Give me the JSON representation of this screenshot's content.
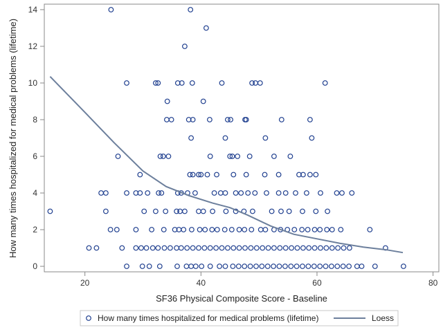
{
  "chart_data": {
    "type": "scatter",
    "xlabel": "SF36 Physical Composite Score - Baseline",
    "ylabel": "How many times hospitalized for medical problems (lifetime)",
    "xlim": [
      13,
      81
    ],
    "ylim": [
      -0.3,
      14.3
    ],
    "xticks": [
      20,
      40,
      60,
      80
    ],
    "yticks": [
      0,
      2,
      4,
      6,
      8,
      10,
      12,
      14
    ],
    "grid": false,
    "legend_position": "bottom",
    "colors": {
      "points": "#1f3f8f",
      "loess": "#6c7f9c",
      "frame": "#888888"
    },
    "series": [
      {
        "name": "How many times hospitalized for medical problems (lifetime)",
        "kind": "scatter",
        "marker": "open-circle",
        "points": [
          [
            24.5,
            14
          ],
          [
            38.2,
            14
          ],
          [
            37.2,
            12
          ],
          [
            40.9,
            13
          ],
          [
            27.2,
            10
          ],
          [
            32.2,
            10
          ],
          [
            32.6,
            10
          ],
          [
            36.0,
            10
          ],
          [
            36.7,
            10
          ],
          [
            38.5,
            10
          ],
          [
            43.6,
            10
          ],
          [
            48.8,
            10
          ],
          [
            49.4,
            10
          ],
          [
            50.2,
            10
          ],
          [
            61.4,
            10
          ],
          [
            34.2,
            9
          ],
          [
            40.4,
            9
          ],
          [
            34.1,
            8
          ],
          [
            34.9,
            8
          ],
          [
            37.9,
            8
          ],
          [
            38.6,
            8
          ],
          [
            41.5,
            8
          ],
          [
            44.6,
            8
          ],
          [
            45.1,
            8
          ],
          [
            47.6,
            8
          ],
          [
            47.8,
            8
          ],
          [
            53.9,
            8
          ],
          [
            58.8,
            8
          ],
          [
            38.3,
            7
          ],
          [
            44.2,
            7
          ],
          [
            51.1,
            7
          ],
          [
            59.1,
            7
          ],
          [
            25.7,
            6
          ],
          [
            33.0,
            6
          ],
          [
            33.5,
            6
          ],
          [
            34.4,
            6
          ],
          [
            41.6,
            6
          ],
          [
            45.0,
            6
          ],
          [
            45.4,
            6
          ],
          [
            46.3,
            6
          ],
          [
            48.4,
            6
          ],
          [
            52.6,
            6
          ],
          [
            55.4,
            6
          ],
          [
            29.5,
            5
          ],
          [
            38.1,
            5
          ],
          [
            38.6,
            5
          ],
          [
            39.6,
            5
          ],
          [
            40.0,
            5
          ],
          [
            41.1,
            5
          ],
          [
            42.7,
            5
          ],
          [
            45.6,
            5
          ],
          [
            47.8,
            5
          ],
          [
            51.0,
            5
          ],
          [
            53.4,
            5
          ],
          [
            56.9,
            5
          ],
          [
            57.6,
            5
          ],
          [
            58.8,
            5
          ],
          [
            59.8,
            5
          ],
          [
            22.8,
            4
          ],
          [
            23.6,
            4
          ],
          [
            27.2,
            4
          ],
          [
            28.8,
            4
          ],
          [
            29.5,
            4
          ],
          [
            30.8,
            4
          ],
          [
            32.7,
            4
          ],
          [
            33.2,
            4
          ],
          [
            36.0,
            4
          ],
          [
            36.6,
            4
          ],
          [
            37.7,
            4
          ],
          [
            39.0,
            4
          ],
          [
            42.3,
            4
          ],
          [
            43.4,
            4
          ],
          [
            44.2,
            4
          ],
          [
            46.0,
            4
          ],
          [
            46.9,
            4
          ],
          [
            48.1,
            4
          ],
          [
            49.3,
            4
          ],
          [
            51.3,
            4
          ],
          [
            53.4,
            4
          ],
          [
            54.6,
            4
          ],
          [
            56.3,
            4
          ],
          [
            58.2,
            4
          ],
          [
            60.6,
            4
          ],
          [
            63.4,
            4
          ],
          [
            64.3,
            4
          ],
          [
            66.0,
            4
          ],
          [
            14.0,
            3
          ],
          [
            23.6,
            3
          ],
          [
            30.2,
            3
          ],
          [
            32.2,
            3
          ],
          [
            33.9,
            3
          ],
          [
            35.8,
            3
          ],
          [
            36.4,
            3
          ],
          [
            37.2,
            3
          ],
          [
            39.6,
            3
          ],
          [
            40.4,
            3
          ],
          [
            42.0,
            3
          ],
          [
            44.3,
            3
          ],
          [
            46.0,
            3
          ],
          [
            47.4,
            3
          ],
          [
            48.9,
            3
          ],
          [
            52.2,
            3
          ],
          [
            53.8,
            3
          ],
          [
            55.2,
            3
          ],
          [
            57.5,
            3
          ],
          [
            59.8,
            3
          ],
          [
            61.8,
            3
          ],
          [
            24.4,
            2
          ],
          [
            25.5,
            2
          ],
          [
            28.8,
            2
          ],
          [
            31.5,
            2
          ],
          [
            33.6,
            2
          ],
          [
            35.5,
            2
          ],
          [
            36.2,
            2
          ],
          [
            37.0,
            2
          ],
          [
            38.4,
            2
          ],
          [
            39.8,
            2
          ],
          [
            40.7,
            2
          ],
          [
            41.9,
            2
          ],
          [
            42.8,
            2
          ],
          [
            44.1,
            2
          ],
          [
            45.3,
            2
          ],
          [
            46.6,
            2
          ],
          [
            47.5,
            2
          ],
          [
            48.7,
            2
          ],
          [
            50.3,
            2
          ],
          [
            51.1,
            2
          ],
          [
            52.6,
            2
          ],
          [
            53.7,
            2
          ],
          [
            54.9,
            2
          ],
          [
            56.1,
            2
          ],
          [
            57.4,
            2
          ],
          [
            58.4,
            2
          ],
          [
            59.6,
            2
          ],
          [
            60.5,
            2
          ],
          [
            61.7,
            2
          ],
          [
            62.6,
            2
          ],
          [
            64.1,
            2
          ],
          [
            69.1,
            2
          ],
          [
            20.7,
            1
          ],
          [
            22.0,
            1
          ],
          [
            26.4,
            1
          ],
          [
            28.8,
            1
          ],
          [
            29.7,
            1
          ],
          [
            30.6,
            1
          ],
          [
            31.7,
            1
          ],
          [
            32.6,
            1
          ],
          [
            33.7,
            1
          ],
          [
            34.7,
            1
          ],
          [
            35.8,
            1
          ],
          [
            36.6,
            1
          ],
          [
            37.6,
            1
          ],
          [
            38.6,
            1
          ],
          [
            39.6,
            1
          ],
          [
            40.6,
            1
          ],
          [
            41.6,
            1
          ],
          [
            42.6,
            1
          ],
          [
            43.6,
            1
          ],
          [
            44.6,
            1
          ],
          [
            45.6,
            1
          ],
          [
            46.6,
            1
          ],
          [
            47.6,
            1
          ],
          [
            48.6,
            1
          ],
          [
            49.6,
            1
          ],
          [
            50.6,
            1
          ],
          [
            51.6,
            1
          ],
          [
            52.6,
            1
          ],
          [
            53.6,
            1
          ],
          [
            54.6,
            1
          ],
          [
            55.6,
            1
          ],
          [
            56.6,
            1
          ],
          [
            57.6,
            1
          ],
          [
            58.6,
            1
          ],
          [
            59.6,
            1
          ],
          [
            60.6,
            1
          ],
          [
            61.6,
            1
          ],
          [
            62.6,
            1
          ],
          [
            63.6,
            1
          ],
          [
            64.6,
            1
          ],
          [
            65.6,
            1
          ],
          [
            71.8,
            1
          ],
          [
            27.2,
            0
          ],
          [
            29.9,
            0
          ],
          [
            31.1,
            0
          ],
          [
            32.9,
            0
          ],
          [
            35.9,
            0
          ],
          [
            37.5,
            0
          ],
          [
            38.3,
            0
          ],
          [
            39.1,
            0
          ],
          [
            40.1,
            0
          ],
          [
            41.6,
            0
          ],
          [
            43.2,
            0
          ],
          [
            44.2,
            0
          ],
          [
            45.5,
            0
          ],
          [
            46.5,
            0
          ],
          [
            47.5,
            0
          ],
          [
            48.5,
            0
          ],
          [
            49.5,
            0
          ],
          [
            50.5,
            0
          ],
          [
            51.5,
            0
          ],
          [
            52.5,
            0
          ],
          [
            53.5,
            0
          ],
          [
            54.5,
            0
          ],
          [
            55.5,
            0
          ],
          [
            56.5,
            0
          ],
          [
            57.5,
            0
          ],
          [
            58.5,
            0
          ],
          [
            59.5,
            0
          ],
          [
            60.5,
            0
          ],
          [
            61.5,
            0
          ],
          [
            62.5,
            0
          ],
          [
            63.5,
            0
          ],
          [
            64.5,
            0
          ],
          [
            65.5,
            0
          ],
          [
            66.9,
            0
          ],
          [
            67.7,
            0
          ],
          [
            70.0,
            0
          ],
          [
            74.9,
            0
          ]
        ]
      },
      {
        "name": "Loess",
        "kind": "line",
        "points": [
          [
            14,
            10.35
          ],
          [
            20,
            8.4
          ],
          [
            25,
            6.75
          ],
          [
            30,
            5.2
          ],
          [
            34,
            4.35
          ],
          [
            38,
            3.85
          ],
          [
            42,
            3.45
          ],
          [
            45,
            3.2
          ],
          [
            48,
            2.8
          ],
          [
            52,
            2.2
          ],
          [
            56,
            1.75
          ],
          [
            60,
            1.5
          ],
          [
            64,
            1.25
          ],
          [
            68,
            1.05
          ],
          [
            72,
            0.9
          ],
          [
            74.8,
            0.75
          ]
        ]
      }
    ]
  }
}
